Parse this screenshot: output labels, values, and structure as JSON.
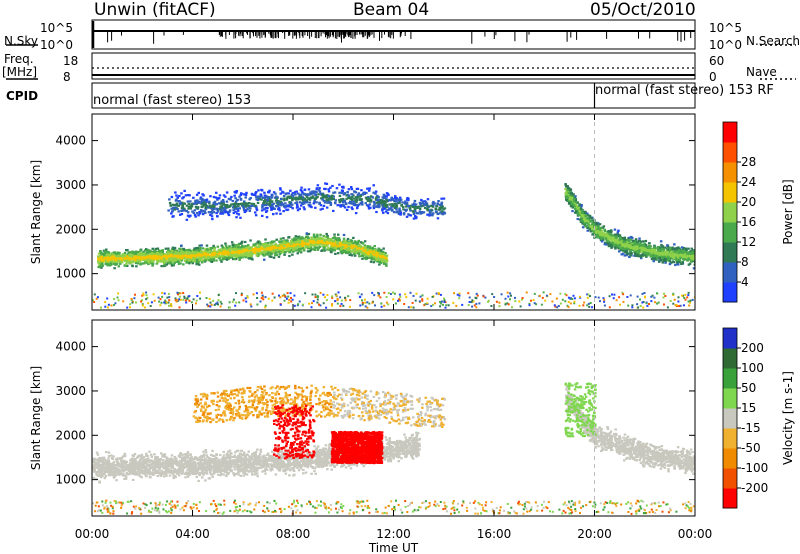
{
  "header": {
    "title": "Unwin (fitACF)",
    "beam": "Beam 04",
    "date": "05/Oct/2010"
  },
  "status_panels": {
    "nsky_label": "N.Sky",
    "nsky_ticks": [
      "10^5",
      "10^0"
    ],
    "nsearch_label": "N.Search",
    "nsearch_ticks": [
      "10^5",
      "10^0"
    ],
    "freq_label_line1": "Freq.",
    "freq_label_line2": "[MHz]",
    "freq_ticks": [
      "18",
      "8"
    ],
    "nave_label": "Nave",
    "nave_ticks": [
      "60",
      "0"
    ],
    "cpid_label": "CPID",
    "cpid_segments": [
      {
        "start": "00:00",
        "text": "normal (fast stereo) 153"
      },
      {
        "start": "20:00",
        "text": "normal (fast stereo) 153 RF"
      }
    ]
  },
  "colors": {
    "power_scale": [
      "#2040ff",
      "#3060c0",
      "#2f7a55",
      "#4aa94a",
      "#8fd14a",
      "#f5c400",
      "#f59000",
      "#ff5000",
      "#ff0000"
    ],
    "velocity_scale": [
      "#2030c8",
      "#2f6a35",
      "#39a13a",
      "#7fd64f",
      "#c8c8be",
      "#f0b030",
      "#f08a00",
      "#f05000",
      "#ff0000"
    ]
  },
  "chart_data": [
    {
      "type": "heatmap",
      "panel": "power",
      "x_axis": {
        "label": "Time UT",
        "ticks": [
          "00:00",
          "04:00",
          "08:00",
          "12:00",
          "16:00",
          "20:00",
          "00:00"
        ],
        "range_hours": [
          0,
          24
        ]
      },
      "y_axis": {
        "label": "Slant Range [km]",
        "ticks": [
          1000,
          2000,
          3000,
          4000
        ],
        "range": [
          180,
          4600
        ]
      },
      "colorbar": {
        "label": "Power [dB]",
        "ticks": [
          4,
          8,
          12,
          16,
          20,
          24,
          28
        ],
        "range": [
          0,
          32
        ]
      },
      "bands": [
        {
          "name": "main-echo",
          "t": [
            0.2,
            2,
            4,
            6,
            7.5,
            9,
            10.5,
            11.7
          ],
          "range_km": [
            1350,
            1380,
            1430,
            1530,
            1620,
            1750,
            1600,
            1350
          ],
          "peak_db": 24
        },
        {
          "name": "upper-echo",
          "t": [
            3,
            5,
            7,
            9,
            11,
            12.5,
            14
          ],
          "range_km": [
            2550,
            2550,
            2650,
            2750,
            2700,
            2500,
            2500
          ],
          "peak_db": 12
        },
        {
          "name": "evening-echo",
          "t": [
            18.8,
            19.5,
            20,
            21,
            22,
            23,
            24
          ],
          "range_km": [
            2900,
            2300,
            2000,
            1700,
            1550,
            1450,
            1400
          ],
          "peak_db": 20
        }
      ]
    },
    {
      "type": "heatmap",
      "panel": "velocity",
      "x_axis": {
        "label": "Time UT",
        "ticks": [
          "00:00",
          "04:00",
          "08:00",
          "12:00",
          "16:00",
          "20:00",
          "00:00"
        ],
        "range_hours": [
          0,
          24
        ]
      },
      "y_axis": {
        "label": "Slant Range [km]",
        "ticks": [
          1000,
          2000,
          3000,
          4000
        ],
        "range": [
          180,
          4600
        ]
      },
      "colorbar": {
        "label": "Velocity [m s-1]",
        "ticks": [
          -200,
          -100,
          -50,
          -15,
          15,
          50,
          100,
          200
        ],
        "range": [
          -250,
          250
        ]
      },
      "bands": [
        {
          "name": "ground-scatter",
          "t": [
            0,
            4,
            8,
            12,
            13
          ],
          "range_km": [
            1300,
            1350,
            1450,
            1700,
            1800
          ],
          "velocity": 0
        },
        {
          "name": "negative-patch",
          "t": [
            9.5,
            11.5
          ],
          "range_km": [
            1400,
            1900
          ],
          "velocity": -230
        },
        {
          "name": "evening-echo",
          "t": [
            18.8,
            20,
            22,
            24
          ],
          "range_km": [
            2900,
            2000,
            1600,
            1400
          ],
          "velocity": 0
        }
      ]
    }
  ]
}
